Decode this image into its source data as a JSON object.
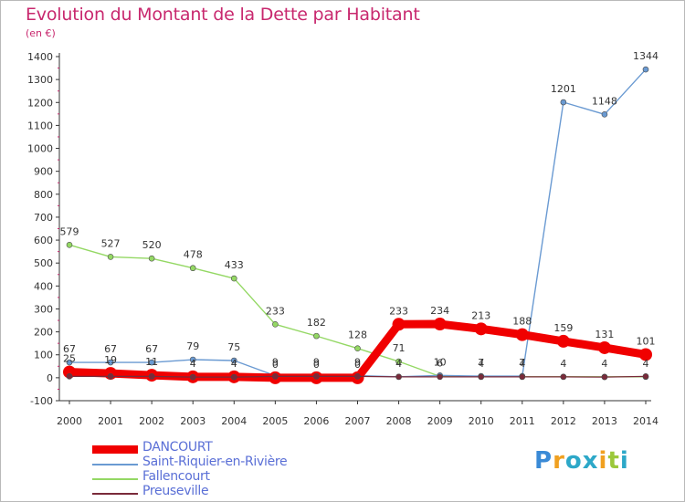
{
  "title": "Evolution du Montant de la Dette par Habitant",
  "unit": "(en €)",
  "brand": {
    "letters": [
      "P",
      "r",
      "o",
      "x",
      "i",
      "t",
      "i"
    ],
    "colors": [
      "#3a8ad6",
      "#f0a020",
      "#2da8c8",
      "#2da8c8",
      "#f0a020",
      "#9bc83a",
      "#2da8c8"
    ]
  },
  "chart_data": {
    "type": "line",
    "title": "Evolution du Montant de la Dette par Habitant",
    "ylabel": "(en €)",
    "xlabel": "",
    "ylim": [
      -100,
      1400
    ],
    "yticks": [
      -100,
      0,
      100,
      200,
      300,
      400,
      500,
      600,
      700,
      800,
      900,
      1000,
      1100,
      1200,
      1300,
      1400
    ],
    "x": [
      "2000",
      "2001",
      "2002",
      "2003",
      "2004",
      "2005",
      "2006",
      "2007",
      "2008",
      "2009",
      "2010",
      "2011",
      "2012",
      "2013",
      "2014"
    ],
    "grid": false,
    "legend_position": "bottom-left",
    "series": [
      {
        "name": "DANCOURT",
        "color": "#f00000",
        "values": [
          25,
          19,
          11,
          4,
          4,
          0,
          0,
          0,
          233,
          234,
          213,
          188,
          159,
          131,
          101
        ],
        "labels": [
          "25",
          "19",
          "11",
          "4",
          "4",
          "0",
          "0",
          "0",
          "233",
          "234",
          "213",
          "188",
          "159",
          "131",
          "101"
        ],
        "width": 9
      },
      {
        "name": "Saint-Riquier-en-Rivière",
        "color": "#6a9ad2",
        "values": [
          67,
          67,
          67,
          79,
          75,
          9,
          9,
          9,
          4,
          10,
          7,
          7,
          1201,
          1148,
          1344
        ],
        "labels": [
          "67",
          "67",
          "67",
          "79",
          "75",
          "9",
          "9",
          "9",
          "4",
          "10",
          "7",
          "7",
          "1201",
          "1148",
          "1344"
        ],
        "width": 1.4
      },
      {
        "name": "Fallencourt",
        "color": "#94d864",
        "values": [
          579,
          527,
          520,
          478,
          433,
          233,
          182,
          128,
          71,
          6,
          4,
          4,
          4,
          4,
          4
        ],
        "labels": [
          "579",
          "527",
          "520",
          "478",
          "433",
          "233",
          "182",
          "128",
          "71",
          "6",
          "4",
          "4",
          "4",
          "4",
          "4"
        ],
        "width": 1.4
      },
      {
        "name": "Preuseville",
        "color": "#7a2a3a",
        "values": [
          6,
          6,
          6,
          3,
          3,
          6,
          6,
          6,
          4,
          4,
          4,
          4,
          4,
          3,
          6
        ],
        "labels": [
          "",
          "",
          "",
          "",
          "",
          "",
          "",
          "",
          "",
          "",
          "",
          "",
          "",
          "",
          ""
        ],
        "width": 1.2
      }
    ]
  }
}
